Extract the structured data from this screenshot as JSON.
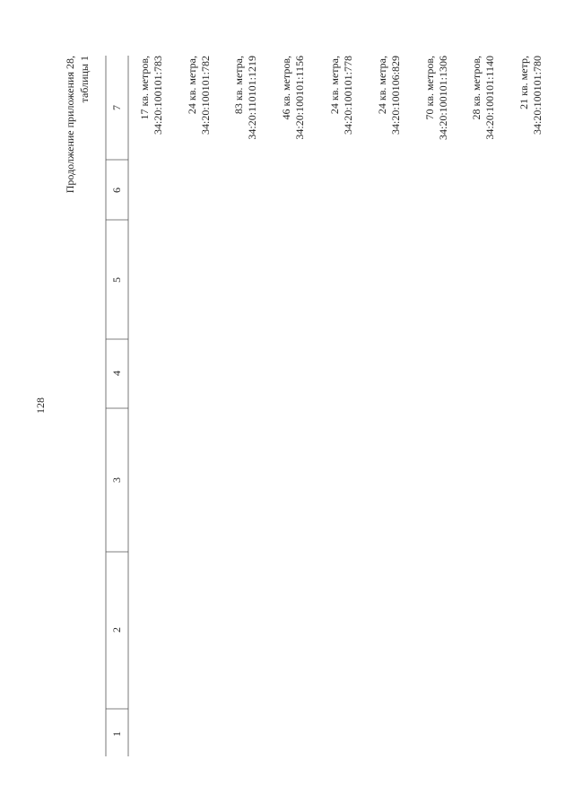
{
  "page_number": "128",
  "heading": [
    "Продолжение приложения 28,",
    "таблицы 1"
  ],
  "table": {
    "header": [
      "1",
      "2",
      "3",
      "4",
      "5",
      "6",
      "7"
    ],
    "rows": [
      [
        "17 кв. метров,",
        "34:20:100101:783"
      ],
      [
        "24 кв. метра,",
        "34:20:100101:782"
      ],
      [
        "83 кв. метра,",
        "34:20:110101:1219"
      ],
      [
        "46 кв. метров,",
        "34:20:100101:1156"
      ],
      [
        "24 кв. метра,",
        "34:20:100101:778"
      ],
      [
        "24 кв. метра,",
        "34:20:100106:829"
      ],
      [
        "70 кв. метров,",
        "34:20:100101:1306"
      ],
      [
        "28 кв. метров,",
        "34:20:100101:1140"
      ],
      [
        "21 кв. метр,",
        "34:20:100101:780"
      ]
    ]
  }
}
